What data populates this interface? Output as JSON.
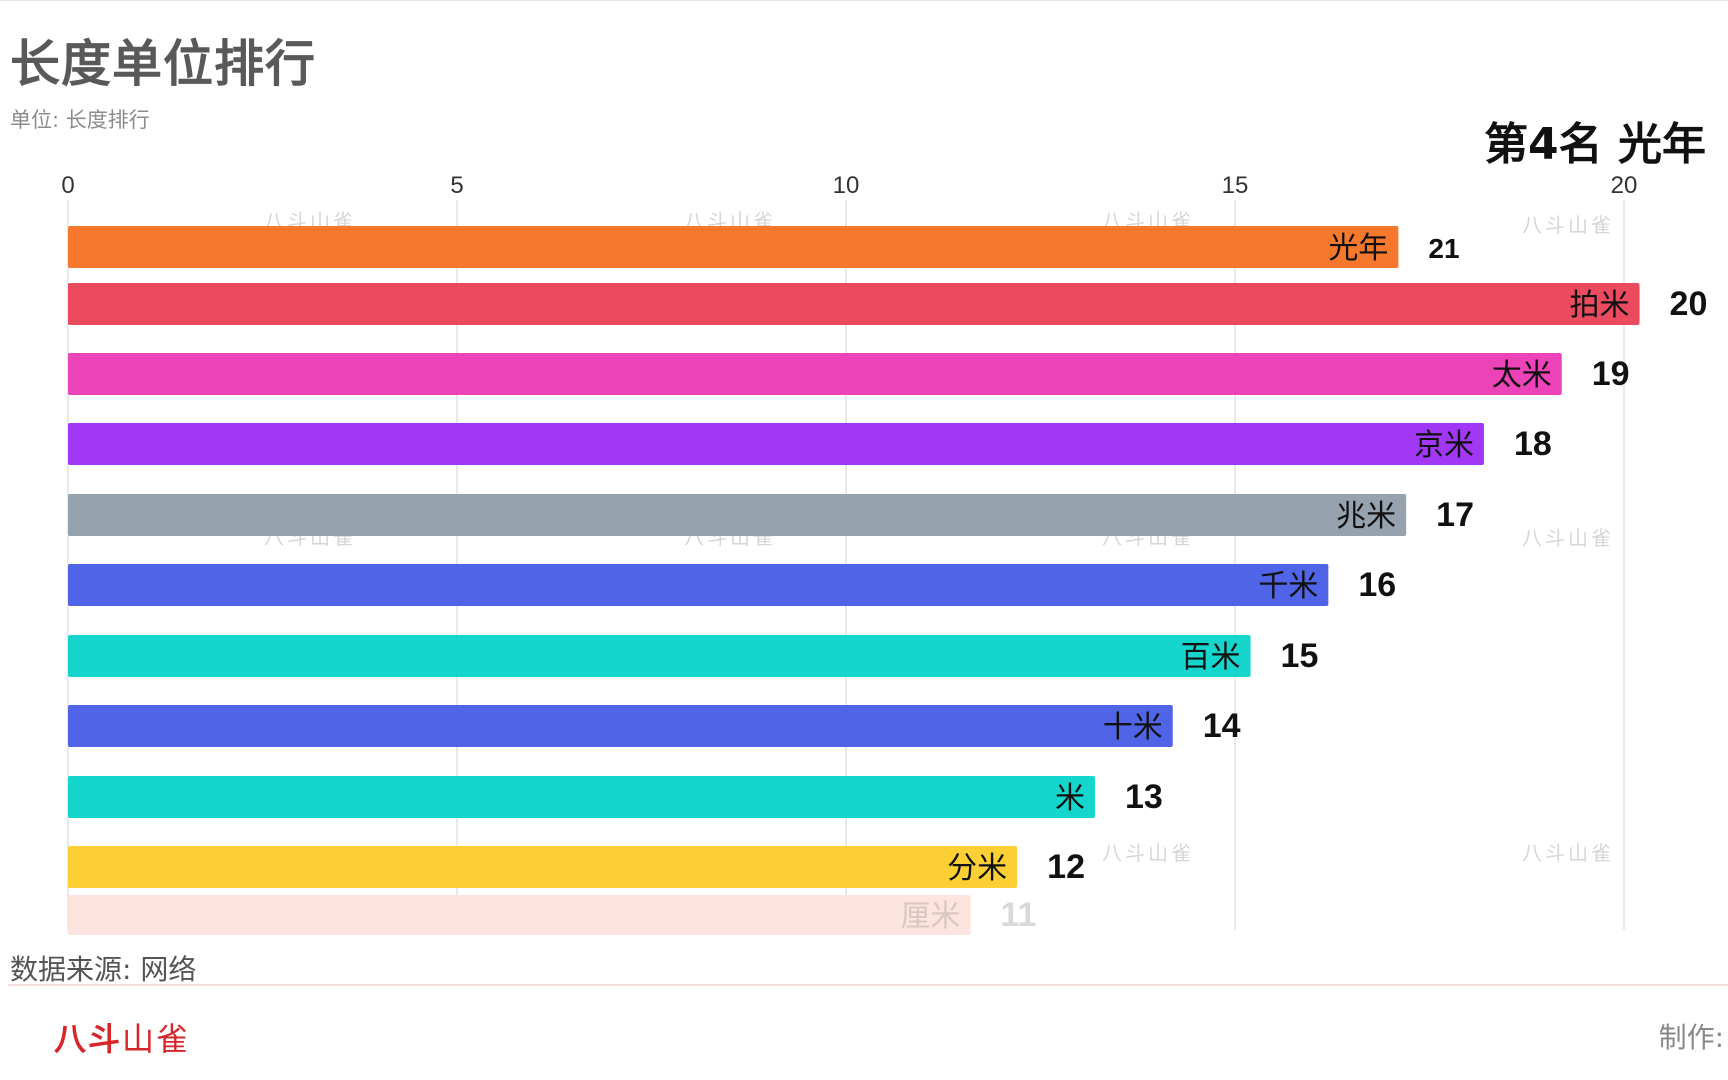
{
  "title": "长度单位排行",
  "subtitle": "单位: 长度排行",
  "rank_label": "第4名 光年",
  "source": "数据来源: 网络",
  "logo": {
    "bold": "八斗",
    "light": "山雀"
  },
  "credit": "制作:",
  "watermark_text": "八斗山雀",
  "chart_data": {
    "type": "bar",
    "orientation": "horizontal",
    "xlim": [
      0,
      20
    ],
    "xticks": [
      0,
      5,
      10,
      15,
      20
    ],
    "grid": true,
    "categories": [
      "光年",
      "拍米",
      "太米",
      "京米",
      "兆米",
      "千米",
      "百米",
      "十米",
      "米",
      "分米",
      "厘米"
    ],
    "values": [
      21,
      20,
      19,
      18,
      17,
      16,
      15,
      14,
      13,
      12,
      11
    ],
    "bar_extents": [
      17.1,
      20.2,
      19.2,
      18.2,
      17.2,
      16.2,
      15.2,
      14.2,
      13.2,
      12.2,
      11.6
    ],
    "colors": [
      "#f5782d",
      "#ec4a5e",
      "#ec44b8",
      "#a238f5",
      "#96a2ad",
      "#5064e8",
      "#15d6cd",
      "#5064e8",
      "#15d6cd",
      "#fccf34",
      "#fde4de"
    ],
    "faded": [
      false,
      false,
      false,
      false,
      false,
      false,
      false,
      false,
      false,
      false,
      true
    ]
  }
}
